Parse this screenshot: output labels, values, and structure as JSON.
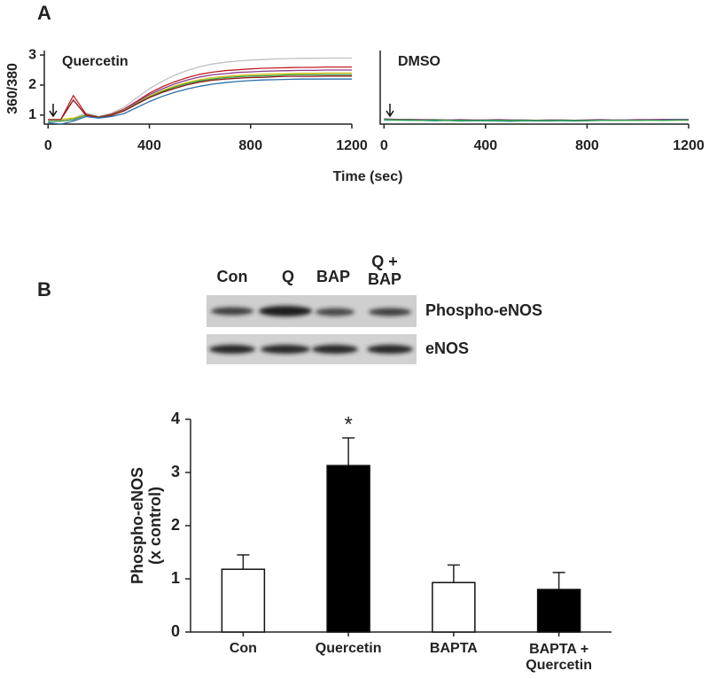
{
  "chart_data": [
    {
      "type": "line",
      "panel": "A",
      "title": "Quercetin",
      "ylabel": "360/380",
      "xlabel": "Time (sec)",
      "x": [
        0,
        50,
        100,
        150,
        200,
        250,
        300,
        350,
        400,
        450,
        500,
        550,
        600,
        650,
        700,
        750,
        800,
        850,
        900,
        950,
        1000,
        1050,
        1100,
        1150,
        1200
      ],
      "xlim": [
        -15,
        1200
      ],
      "xticks": [
        0,
        400,
        800,
        1200
      ],
      "ylim": [
        0.7,
        3.15
      ],
      "yticks": [
        1,
        2,
        3
      ],
      "series": [
        {
          "color": "#c0c0c0",
          "values": [
            0.85,
            0.85,
            0.9,
            1.06,
            0.95,
            1.06,
            1.26,
            1.57,
            1.88,
            2.12,
            2.33,
            2.49,
            2.61,
            2.7,
            2.76,
            2.8,
            2.83,
            2.85,
            2.87,
            2.88,
            2.89,
            2.89,
            2.9,
            2.9,
            2.9
          ]
        },
        {
          "color": "#c0202a",
          "values": [
            0.85,
            0.85,
            1.65,
            1.03,
            0.94,
            1.03,
            1.2,
            1.46,
            1.73,
            1.94,
            2.11,
            2.25,
            2.36,
            2.43,
            2.48,
            2.51,
            2.54,
            2.56,
            2.57,
            2.58,
            2.59,
            2.59,
            2.6,
            2.6,
            2.6
          ]
        },
        {
          "color": "#8a3c8a",
          "values": [
            0.8,
            0.8,
            0.85,
            1.0,
            0.93,
            1.0,
            1.18,
            1.43,
            1.68,
            1.87,
            2.04,
            2.17,
            2.27,
            2.34,
            2.38,
            2.42,
            2.44,
            2.46,
            2.47,
            2.48,
            2.49,
            2.49,
            2.5,
            2.5,
            2.5
          ]
        },
        {
          "color": "#d4c21a",
          "values": [
            0.85,
            0.85,
            0.9,
            1.0,
            0.93,
            1.0,
            1.16,
            1.39,
            1.63,
            1.81,
            1.97,
            2.09,
            2.18,
            2.25,
            2.29,
            2.32,
            2.35,
            2.36,
            2.37,
            2.38,
            2.39,
            2.39,
            2.4,
            2.4,
            2.4
          ]
        },
        {
          "color": "#3a9a3a",
          "values": [
            0.8,
            0.8,
            0.85,
            1.0,
            0.93,
            1.0,
            1.15,
            1.38,
            1.6,
            1.78,
            1.93,
            2.05,
            2.14,
            2.2,
            2.25,
            2.28,
            2.3,
            2.31,
            2.32,
            2.34,
            2.34,
            2.34,
            2.35,
            2.35,
            2.35
          ]
        },
        {
          "color": "#8b1a1a",
          "values": [
            0.85,
            0.85,
            1.5,
            0.99,
            0.92,
            0.99,
            1.14,
            1.36,
            1.58,
            1.75,
            1.89,
            2.01,
            2.1,
            2.16,
            2.2,
            2.23,
            2.25,
            2.26,
            2.28,
            2.29,
            2.29,
            2.29,
            2.3,
            2.3,
            2.3
          ]
        },
        {
          "color": "#2a6fa8",
          "values": [
            0.75,
            0.7,
            0.8,
            0.95,
            0.9,
            0.95,
            1.05,
            1.25,
            1.45,
            1.62,
            1.76,
            1.87,
            1.96,
            2.03,
            2.08,
            2.12,
            2.15,
            2.17,
            2.18,
            2.19,
            2.2,
            2.2,
            2.2,
            2.2,
            2.2
          ]
        }
      ]
    },
    {
      "type": "line",
      "title": "DMSO",
      "x": [
        0,
        50,
        100,
        150,
        200,
        250,
        300,
        350,
        400,
        450,
        500,
        550,
        600,
        650,
        700,
        750,
        800,
        850,
        900,
        950,
        1000,
        1050,
        1100,
        1150,
        1200
      ],
      "xlim": [
        -15,
        1200
      ],
      "xticks": [
        0,
        400,
        800,
        1200
      ],
      "ylim": [
        0.7,
        3.15
      ],
      "series": [
        {
          "color": "#8a3c8a",
          "values": [
            0.87,
            0.86,
            0.86,
            0.85,
            0.85,
            0.84,
            0.85,
            0.84,
            0.84,
            0.85,
            0.84,
            0.84,
            0.83,
            0.84,
            0.84,
            0.83,
            0.84,
            0.85,
            0.84,
            0.84,
            0.85,
            0.85,
            0.86,
            0.86,
            0.86
          ]
        },
        {
          "color": "#2a9aa8",
          "values": [
            0.83,
            0.83,
            0.82,
            0.82,
            0.81,
            0.82,
            0.8,
            0.81,
            0.81,
            0.8,
            0.79,
            0.81,
            0.8,
            0.8,
            0.81,
            0.8,
            0.81,
            0.82,
            0.82,
            0.83,
            0.82,
            0.83,
            0.83,
            0.84,
            0.84
          ]
        },
        {
          "color": "#3a9a3a",
          "values": [
            0.85,
            0.84,
            0.84,
            0.83,
            0.84,
            0.83,
            0.83,
            0.82,
            0.83,
            0.83,
            0.82,
            0.83,
            0.82,
            0.82,
            0.83,
            0.82,
            0.82,
            0.83,
            0.83,
            0.82,
            0.83,
            0.83,
            0.82,
            0.83,
            0.83
          ]
        }
      ]
    },
    {
      "type": "bar",
      "ylabel": "Phospho-eNOS\n(x control)",
      "annotation": "*",
      "categories": [
        "Con",
        "Quercetin",
        "BAPTA",
        "BAPTA +\nQuercetin"
      ],
      "values": [
        1.18,
        3.13,
        0.93,
        0.8
      ],
      "errors": [
        0.27,
        0.52,
        0.33,
        0.32
      ],
      "colors": [
        "#ffffff",
        "#000000",
        "#ffffff",
        "#000000"
      ],
      "ylim": [
        0,
        4
      ],
      "yticks": [
        0,
        1,
        2,
        3,
        4
      ]
    }
  ],
  "blot": {
    "panel": "B",
    "lanes": [
      "Con",
      "Q",
      "BAP",
      "Q +\nBAP"
    ],
    "rows": [
      "Phospho-eNOS",
      "eNOS"
    ]
  }
}
